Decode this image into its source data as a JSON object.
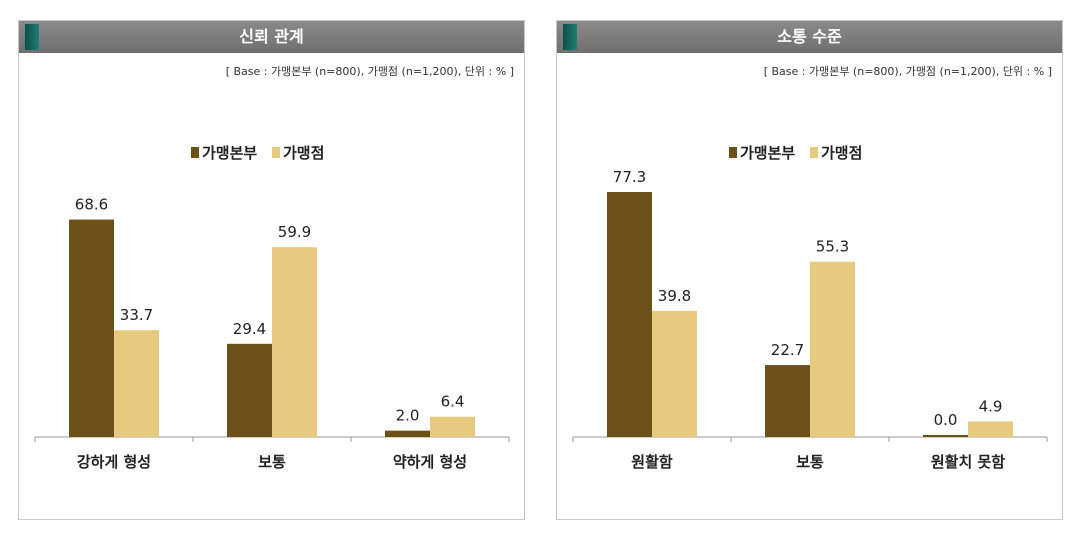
{
  "chart_data": [
    {
      "type": "bar",
      "title": "신뢰 관계",
      "note": "[ Base : 가맹본부 (n=800), 가맹점 (n=1,200), 단위 : % ]",
      "categories": [
        "강하게 형성",
        "보통",
        "약하게 형성"
      ],
      "series": [
        {
          "name": "가맹본부",
          "values": [
            68.6,
            29.4,
            2.0
          ],
          "color": "#6b5118"
        },
        {
          "name": "가맹점",
          "values": [
            33.7,
            59.9,
            6.4
          ],
          "color": "#e6cb7e"
        }
      ],
      "ylim": [
        0,
        85
      ],
      "legend": "top-center",
      "grid": false
    },
    {
      "type": "bar",
      "title": "소통 수준",
      "note": "[ Base : 가맹본부 (n=800), 가맹점 (n=1,200), 단위 : % ]",
      "categories": [
        "원활함",
        "보통",
        "원활치 못함"
      ],
      "series": [
        {
          "name": "가맹본부",
          "values": [
            77.3,
            22.7,
            0.0
          ],
          "color": "#6b5118"
        },
        {
          "name": "가맹점",
          "values": [
            39.8,
            55.3,
            4.9
          ],
          "color": "#e6cb7e"
        }
      ],
      "ylim": [
        0,
        85
      ],
      "legend": "top-center",
      "grid": false
    }
  ]
}
